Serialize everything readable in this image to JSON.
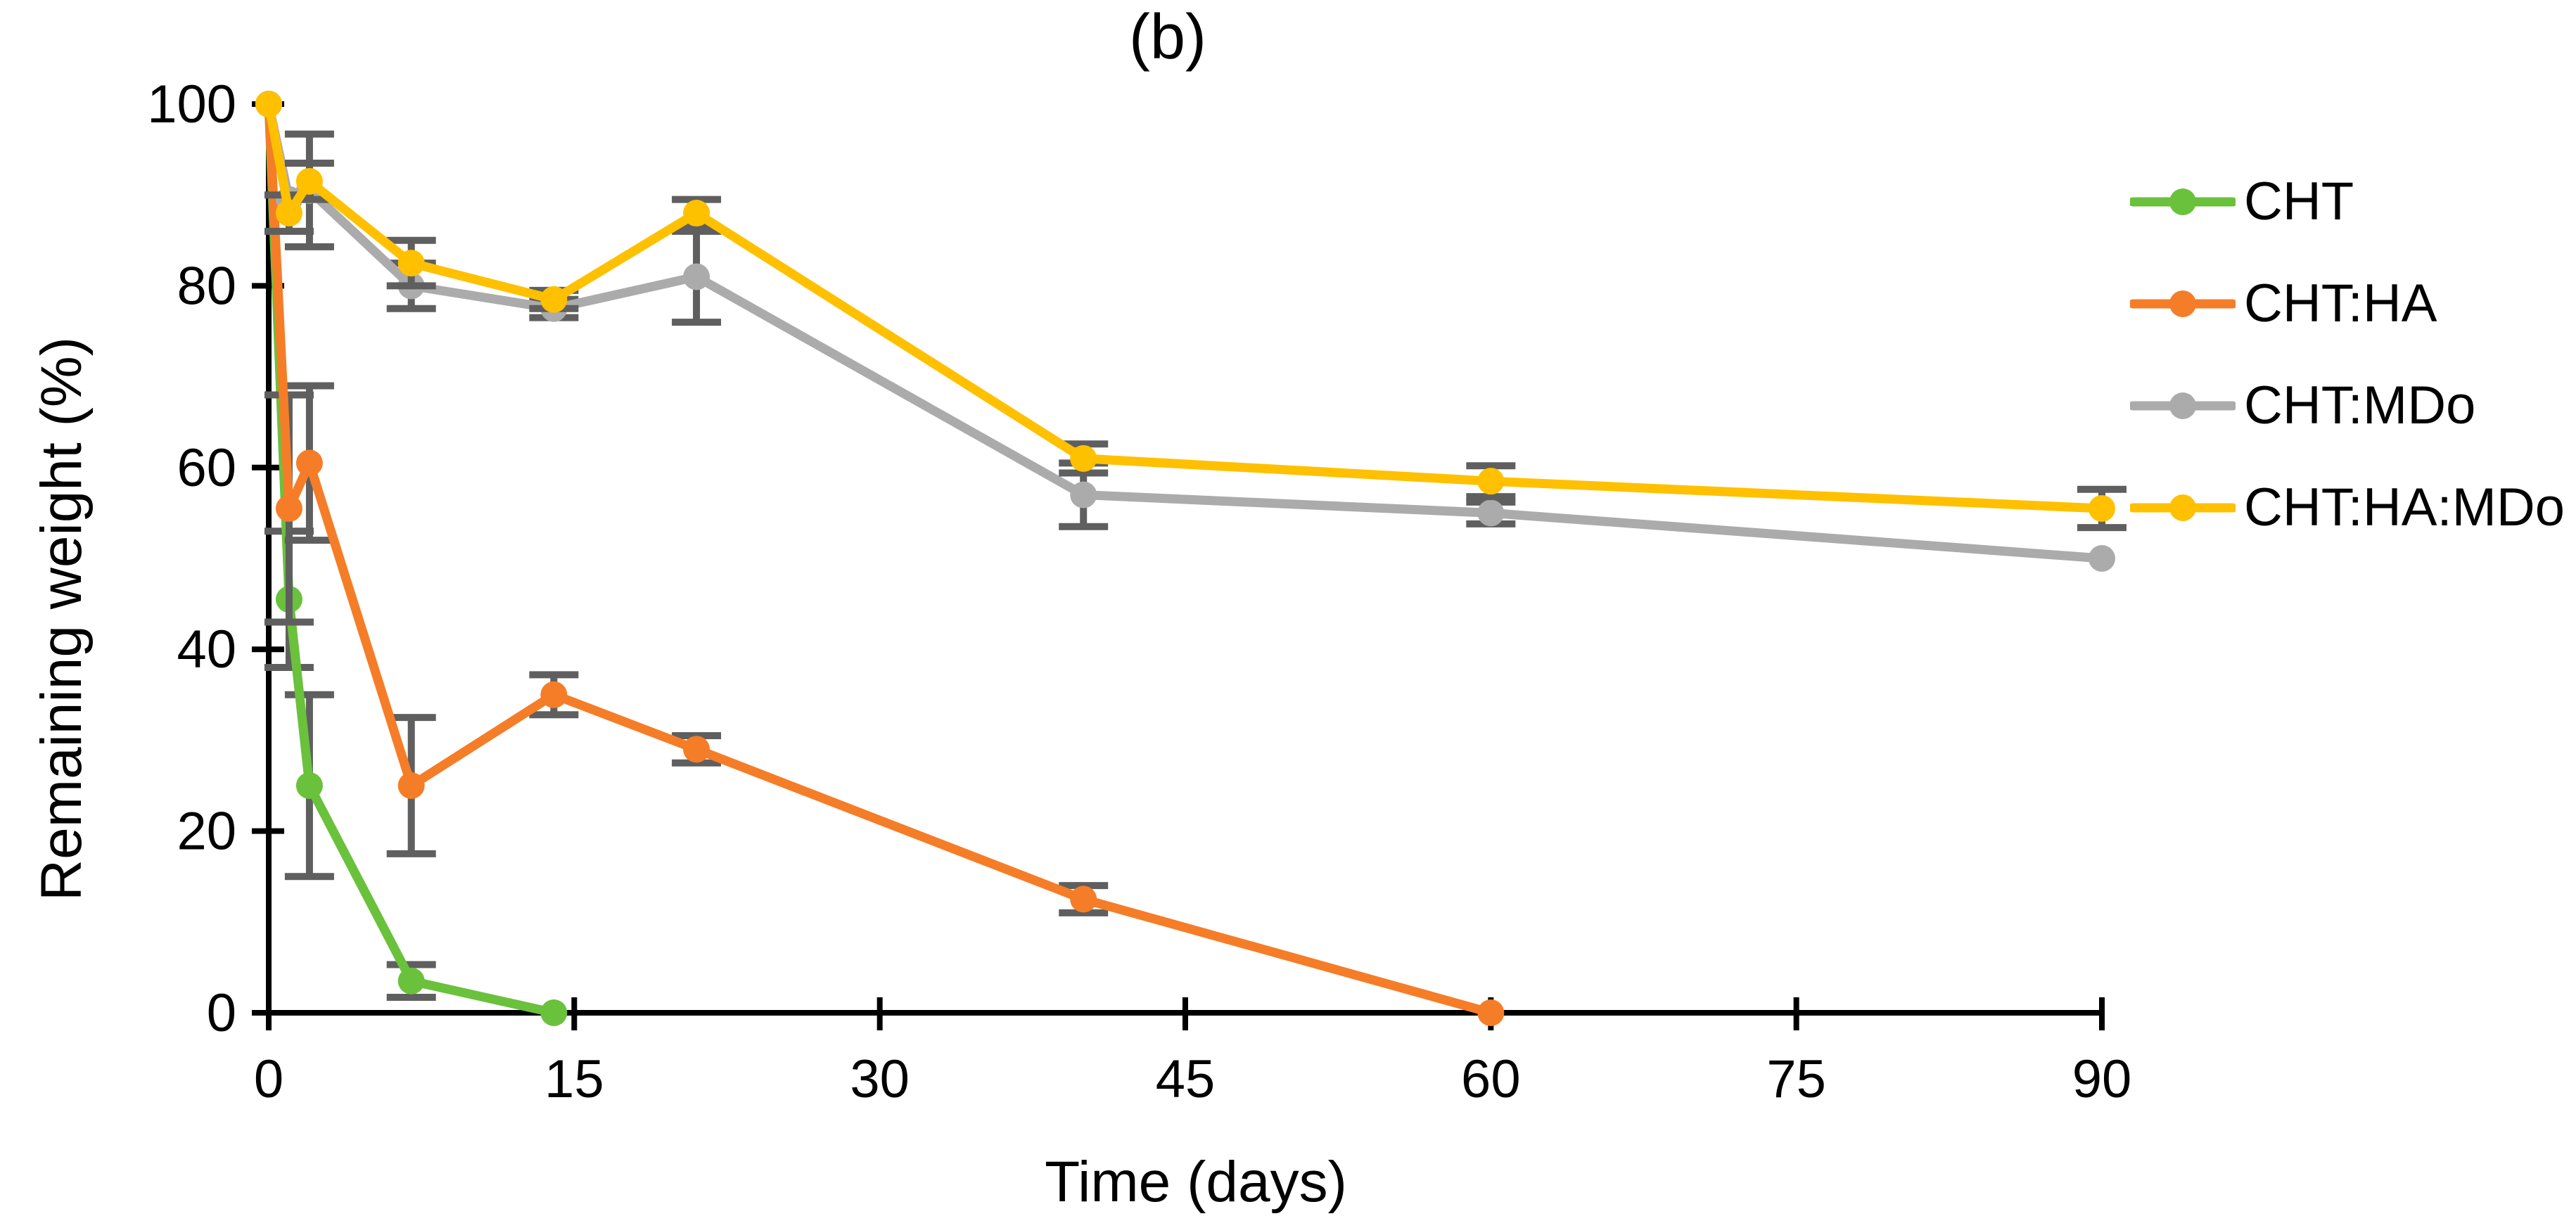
{
  "figure": {
    "title": "(b)"
  },
  "chart_data": {
    "type": "line",
    "title": "(b)",
    "xlabel": "Time (days)",
    "ylabel": "Remaining weight (%)",
    "xlim": [
      0,
      90
    ],
    "ylim": [
      0,
      100
    ],
    "x_ticks": [
      0,
      15,
      30,
      45,
      60,
      75,
      90
    ],
    "y_ticks": [
      0,
      20,
      40,
      60,
      80,
      100
    ],
    "grid": false,
    "legend_position": "right",
    "axis_color": "#000000",
    "error_bar_color": "#5f5f5f",
    "series": [
      {
        "name": "CHT",
        "color": "#6ac13c",
        "points": [
          {
            "x": 0,
            "y": 100,
            "err": 0
          },
          {
            "x": 1,
            "y": 45.5,
            "err": 7.5
          },
          {
            "x": 2,
            "y": 25,
            "err": 10
          },
          {
            "x": 7,
            "y": 3.5,
            "err": 1.8
          },
          {
            "x": 14,
            "y": 0,
            "err": 0
          }
        ]
      },
      {
        "name": "CHT:HA",
        "color": "#f57d28",
        "points": [
          {
            "x": 0,
            "y": 100,
            "err": 0
          },
          {
            "x": 1,
            "y": 55.5,
            "err": 12.5
          },
          {
            "x": 2,
            "y": 60.5,
            "err": 8.5
          },
          {
            "x": 7,
            "y": 25,
            "err": 7.5
          },
          {
            "x": 14,
            "y": 35,
            "err": 2.2
          },
          {
            "x": 21,
            "y": 29,
            "err": 1.5
          },
          {
            "x": 40,
            "y": 12.5,
            "err": 1.5
          },
          {
            "x": 60,
            "y": 0,
            "err": 0
          }
        ]
      },
      {
        "name": "CHT:MDo",
        "color": "#ababab",
        "points": [
          {
            "x": 0,
            "y": 100,
            "err": 0
          },
          {
            "x": 1,
            "y": 89.5,
            "err": 0
          },
          {
            "x": 2,
            "y": 90.5,
            "err": 6.2
          },
          {
            "x": 7,
            "y": 80,
            "err": 2.5
          },
          {
            "x": 14,
            "y": 77.5,
            "err": 1
          },
          {
            "x": 21,
            "y": 81,
            "err": 5
          },
          {
            "x": 40,
            "y": 57,
            "err": 3.5
          },
          {
            "x": 60,
            "y": 55,
            "err": 1.2
          },
          {
            "x": 90,
            "y": 50,
            "err": 0
          }
        ]
      },
      {
        "name": "CHT:HA:MDo",
        "color": "#ffc000",
        "points": [
          {
            "x": 0,
            "y": 100,
            "err": 0
          },
          {
            "x": 1,
            "y": 88,
            "err": 2
          },
          {
            "x": 2,
            "y": 91.5,
            "err": 2
          },
          {
            "x": 7,
            "y": 82.5,
            "err": 2.5
          },
          {
            "x": 14,
            "y": 78.5,
            "err": 1
          },
          {
            "x": 21,
            "y": 88,
            "err": 1.5
          },
          {
            "x": 40,
            "y": 61,
            "err": 1.6
          },
          {
            "x": 60,
            "y": 58.5,
            "err": 1.7
          },
          {
            "x": 90,
            "y": 55.5,
            "err": 2.1
          }
        ]
      }
    ]
  }
}
